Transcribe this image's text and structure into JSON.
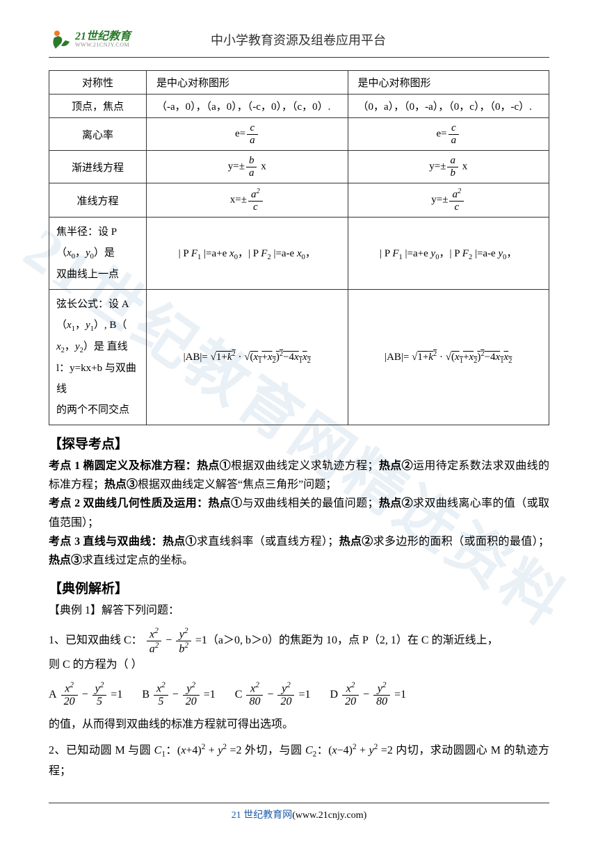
{
  "header": {
    "logo_cn": "21世纪教育",
    "logo_en": "WWW.21CNJY.COM",
    "title": "中小学教育资源及组卷应用平台"
  },
  "table": {
    "rows": [
      {
        "label": "对称性",
        "c1": "是中心对称图形",
        "c2": "是中心对称图形"
      },
      {
        "label": "顶点，焦点",
        "c1": "（-a，0），（a，0），（-c，0），（c，0）.",
        "c2": "（0，a），（0，-a），（0，c），（0，-c）."
      },
      {
        "label": "离心率",
        "c1_html": "e=<span class='frac'><span class='num ital'>c</span><span class='den ital'>a</span></span>",
        "c2_html": "e=<span class='frac'><span class='num ital'>c</span><span class='den ital'>a</span></span>"
      },
      {
        "label": "渐进线方程",
        "c1_html": "y=±<span class='frac'><span class='num ital'>b</span><span class='den ital'>a</span></span> x",
        "c2_html": "y=±<span class='frac'><span class='num ital'>a</span><span class='den ital'>b</span></span> x"
      },
      {
        "label": "准线方程",
        "c1_html": "x=±<span class='frac'><span class='num'><span class='ital'>a</span><span class='sup'>2</span></span><span class='den ital'>c</span></span>",
        "c2_html": "y=±<span class='frac'><span class='num'><span class='ital'>a</span><span class='sup'>2</span></span><span class='den ital'>c</span></span>"
      },
      {
        "label_html": "焦半径：设 P<br>（<span class='ital'>x</span><span class='sub'>0</span>，<span class='ital'>y</span><span class='sub'>0</span>）是<br>双曲线上一点",
        "c1_html": "| P <span class='ital'>F</span><span class='sub'>1</span> |=a+e <span class='ital'>x</span><span class='sub'>0</span>，| P <span class='ital'>F</span><span class='sub'>2</span> |=a-e <span class='ital'>x</span><span class='sub'>0</span>，",
        "c2_html": "| P <span class='ital'>F</span><span class='sub'>1</span> |=a+e <span class='ital'>y</span><span class='sub'>0</span>，| P <span class='ital'>F</span><span class='sub'>2</span> |=a-e <span class='ital'>y</span><span class='sub'>0</span>，"
      },
      {
        "label_html": "弦长公式：设 A<br>（<span class='ital'>x</span><span class='sub'>1</span>，<span class='ital'>y</span><span class='sub'>1</span>）, B（<br><span class='ital'>x</span><span class='sub'>2</span>，<span class='ital'>y</span><span class='sub'>2</span>）是 直线<br>l：y=kx+b 与双曲线<br>的两个不同交点",
        "c1_html": "|AB|= <span class='math'>√<span class='sqrt'>1+<span class='ital'>k</span><span class='sup'>2</span></span></span> · <span class='math'>√<span class='sqrt'>(<span class='ital'>x</span><span class='sub'>1</span>+<span class='ital'>x</span><span class='sub'>2</span>)<span class='sup'>2</span>−4<span class='ital'>x</span><span class='sub'>1</span><span class='ital'>x</span><span class='sub'>2</span></span></span>",
        "c2_html": "|AB|= <span class='math'>√<span class='sqrt'>1+<span class='ital'>k</span><span class='sup'>2</span></span></span> · <span class='math'>√<span class='sqrt'>(<span class='ital'>x</span><span class='sub'>1</span>+<span class='ital'>x</span><span class='sub'>2</span>)<span class='sup'>2</span>−4<span class='ital'>x</span><span class='sub'>1</span><span class='ital'>x</span><span class='sub'>2</span></span></span>"
      }
    ]
  },
  "sections": {
    "explore": "【探导考点】",
    "exam": "【典例解析】"
  },
  "explore_paras": [
    "<span class='bold'>考点 1 椭圆定义及标准方程：热点①</span>根据双曲线定义求轨迹方程；<span class='bold'>热点②</span>运用待定系数法求双曲线的标准方程；<span class='bold'>热点③</span>根据双曲线定义解答“焦点三角形”问题；",
    "<span class='bold'>考点 2 双曲线几何性质及运用：热点①</span>与双曲线相关的最值问题；<span class='bold'>热点②</span>求双曲线离心率的值（或取值范围）；",
    "<span class='bold'>考点 3 直线与双曲线：热点①</span>求直线斜率（或直线方程）；<span class='bold'>热点②</span>求多边形的面积（或面积的最值）；<span class='bold'>热点③</span>求直线过定点的坐标。"
  ],
  "exam": {
    "lead": "【典例 1】解答下列问题：",
    "q1_text": "1、已知双曲线 C：",
    "q1_eq": "<span class='frac'><span class='num'><span class='ital'>x</span><span class='sup'>2</span></span><span class='den'><span class='ital'>a</span><span class='sup'>2</span></span></span> − <span class='frac'><span class='num'><span class='ital'>y</span><span class='sup'>2</span></span><span class='den'><span class='ital'>b</span><span class='sup'>2</span></span></span> =1（a＞0, b＞0）的焦距为 10，点 P（2, 1）在 C 的渐近线上，",
    "q1_after": "则 C 的方程为（ ）",
    "choices": [
      {
        "k": "A",
        "html": "<span class='frac'><span class='num'><span class='ital'>x</span><span class='sup'>2</span></span><span class='den'>20</span></span> − <span class='frac'><span class='num'><span class='ital'>y</span><span class='sup'>2</span></span><span class='den'>5</span></span> =1"
      },
      {
        "k": "B",
        "html": "<span class='frac'><span class='num'><span class='ital'>x</span><span class='sup'>2</span></span><span class='den'>5</span></span> − <span class='frac'><span class='num'><span class='ital'>y</span><span class='sup'>2</span></span><span class='den'>20</span></span> =1"
      },
      {
        "k": "C",
        "html": "<span class='frac'><span class='num'><span class='ital'>x</span><span class='sup'>2</span></span><span class='den'>80</span></span> − <span class='frac'><span class='num'><span class='ital'>y</span><span class='sup'>2</span></span><span class='den'>20</span></span> =1"
      },
      {
        "k": "D",
        "html": "<span class='frac'><span class='num'><span class='ital'>x</span><span class='sup'>2</span></span><span class='den'>20</span></span> − <span class='frac'><span class='num'><span class='ital'>y</span><span class='sup'>2</span></span><span class='den'>80</span></span> =1"
      }
    ],
    "q1_note": "的值，从而得到双曲线的标准方程就可得出选项。",
    "q2_html": "2、已知动圆 M 与圆 <span class='ital'>C</span><span class='sub'>1</span>：(<span class='ital'>x</span>+4)<span class='sup'>2</span> + <span class='ital'>y</span><span class='sup'>2</span> =2 外切，与圆 <span class='ital'>C</span><span class='sub'>2</span>：(<span class='ital'>x</span>−4)<span class='sup'>2</span> + <span class='ital'>y</span><span class='sup'>2</span> =2 内切，求动圆圆心 M 的轨迹方程；"
  },
  "watermark": "21世纪教育网精选资料",
  "footer": {
    "blue": "21 世纪教育网",
    "rest": "(www.21cnjy.com)"
  },
  "colors": {
    "logo_green": "#2a7a2a",
    "logo_orange": "#f07a2a",
    "watermark": "rgba(120,160,200,0.16)",
    "footer_blue": "#1a5aa8"
  }
}
